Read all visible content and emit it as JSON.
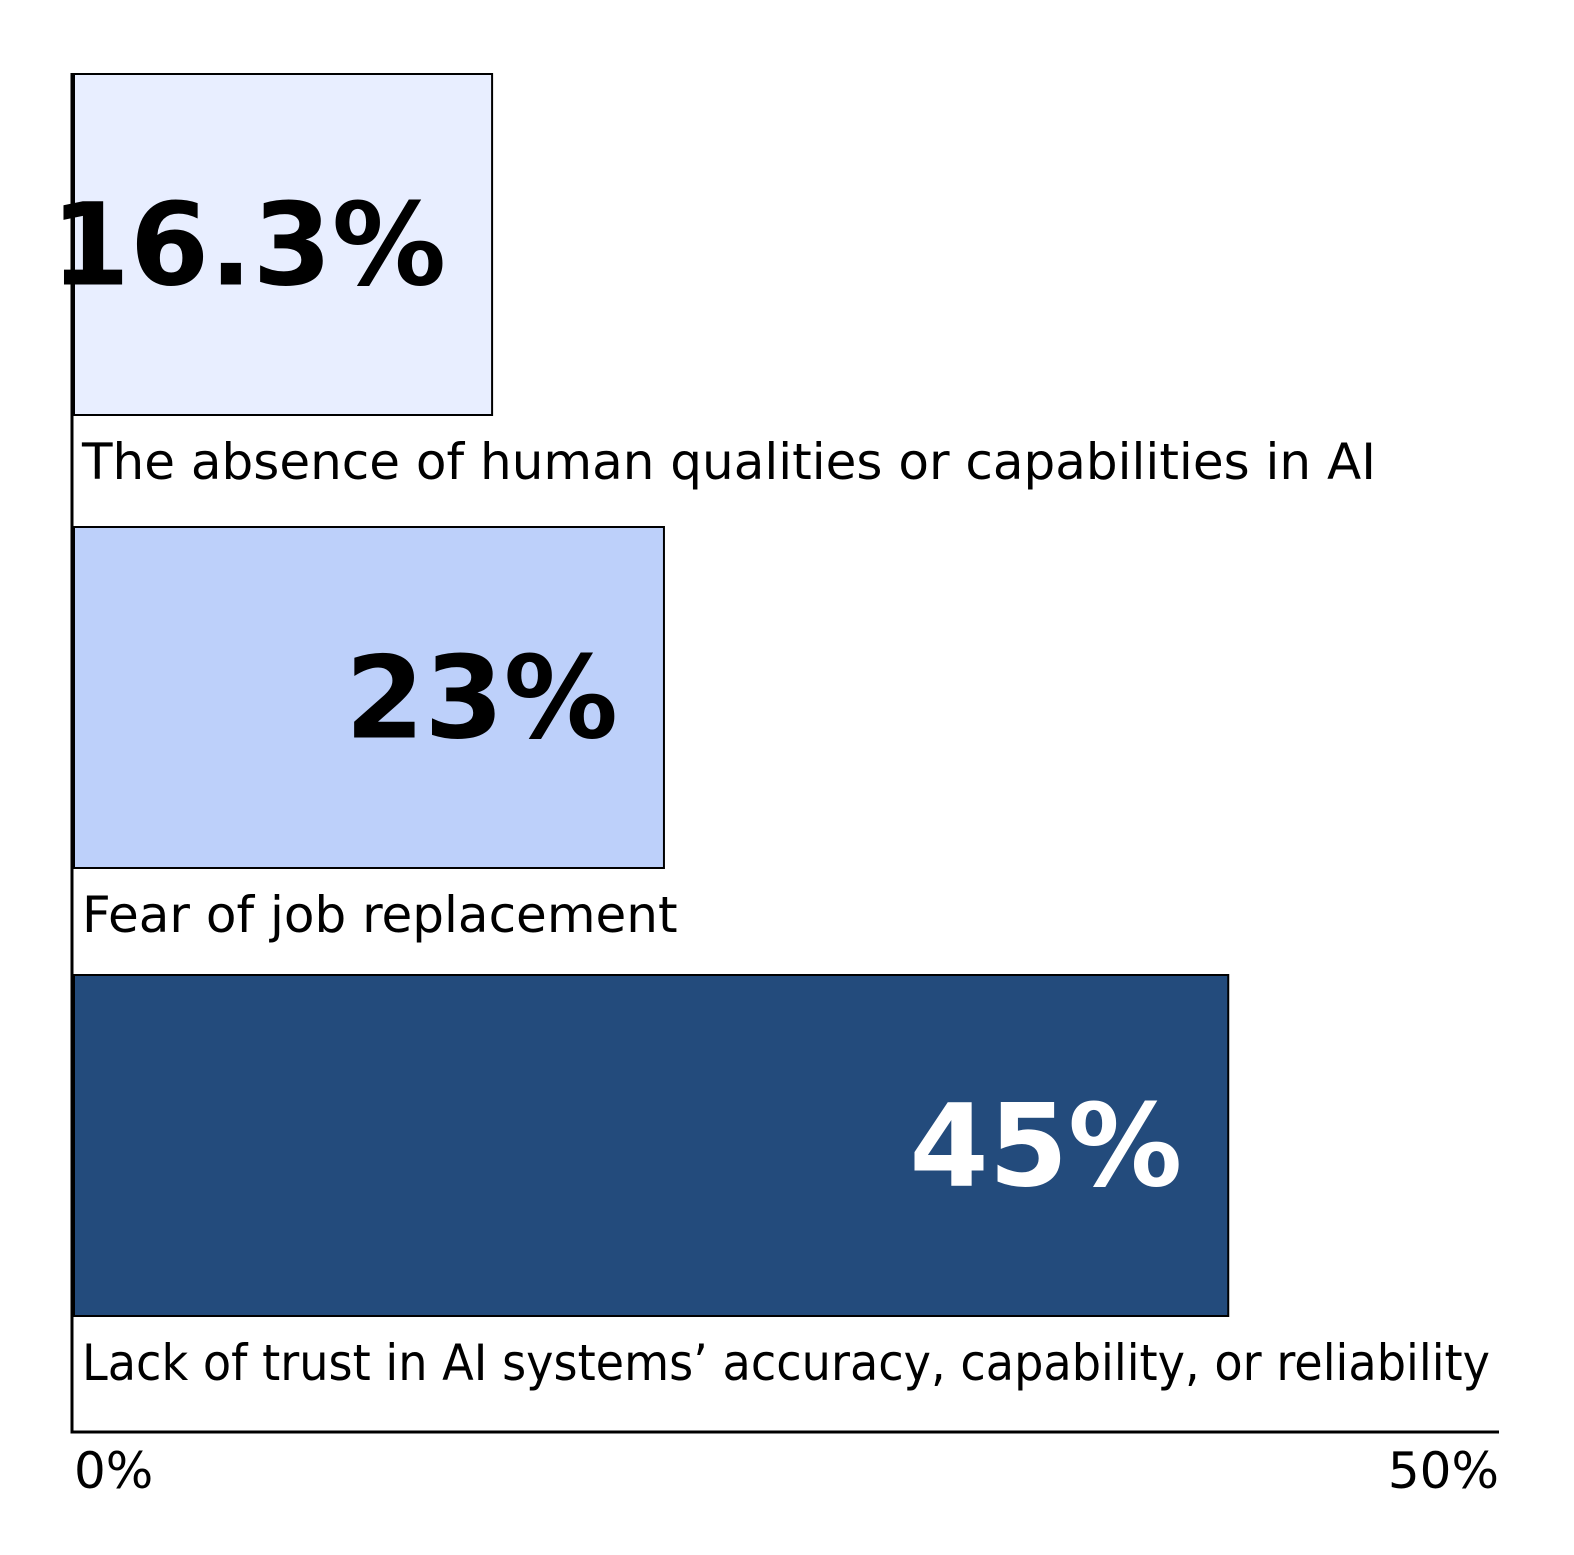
{
  "chart_data": {
    "type": "bar",
    "orientation": "horizontal",
    "categories": [
      "The absence of human qualities or capabilities in AI",
      "Fear of job replacement",
      "Lack of trust in AI systems’ accuracy, capability, or reliability"
    ],
    "values": [
      16.3,
      23,
      45
    ],
    "value_labels": [
      "16.3%",
      "23%",
      "45%"
    ],
    "bar_colors": [
      "#e8eeff",
      "#bdd0fa",
      "#234b7c"
    ],
    "value_label_colors": [
      "#000000",
      "#000000",
      "#ffffff"
    ],
    "xlim": [
      0,
      50
    ],
    "x_tick_labels": [
      "0%",
      "50%"
    ],
    "title": "",
    "xlabel": "",
    "ylabel": "",
    "grid": false,
    "legend": false
  }
}
